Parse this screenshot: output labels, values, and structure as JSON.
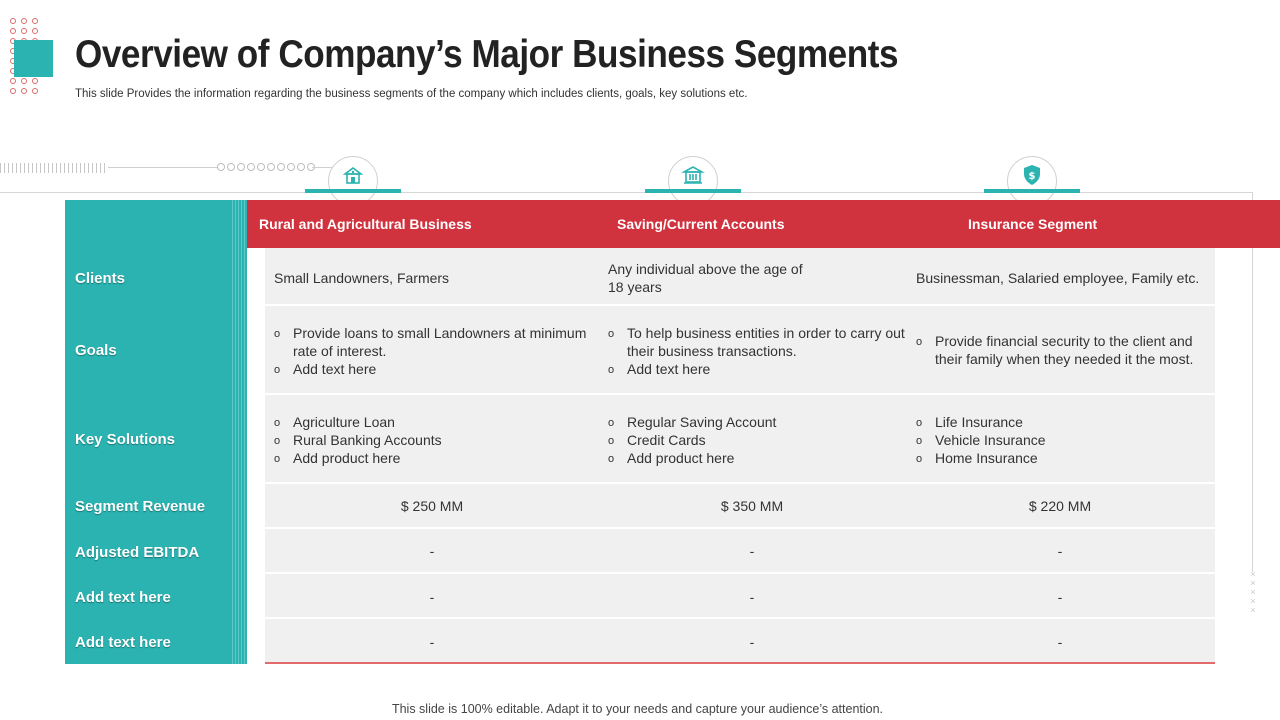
{
  "title": "Overview of Company’s Major Business Segments",
  "subtitle": "This slide Provides the information regarding the business segments of the company which includes clients, goals, key solutions etc.",
  "columns": [
    {
      "label": "Rural and Agricultural Business",
      "icon": "farm-house-icon"
    },
    {
      "label": "Saving/Current Accounts",
      "icon": "bank-building-icon"
    },
    {
      "label": "Insurance Segment",
      "icon": "dollar-shield-icon"
    }
  ],
  "rows": {
    "clients": {
      "label": "Clients",
      "cells": [
        {
          "text": "Small Landowners, Farmers"
        },
        {
          "lines": [
            "Any individual above the age of",
            "18 years"
          ]
        },
        {
          "text": "Businessman, Salaried employee, Family etc."
        }
      ]
    },
    "goals": {
      "label": "Goals",
      "cells": [
        {
          "bullets": [
            [
              "Provide loans to small Landowners at minimum",
              "rate of interest."
            ],
            [
              "Add text here"
            ]
          ]
        },
        {
          "bullets": [
            [
              "To help business entities in order to carry out",
              "their business transactions."
            ],
            [
              "Add text here"
            ]
          ]
        },
        {
          "bullets": [
            [
              "Provide financial security to the client and",
              "their family when they needed it the most."
            ]
          ]
        }
      ]
    },
    "key_solutions": {
      "label": "Key Solutions",
      "cells": [
        {
          "bullets": [
            [
              "Agriculture Loan"
            ],
            [
              "Rural Banking Accounts"
            ],
            [
              "Add product here"
            ]
          ]
        },
        {
          "bullets": [
            [
              "Regular Saving Account"
            ],
            [
              "Credit Cards"
            ],
            [
              "Add product here"
            ]
          ]
        },
        {
          "bullets": [
            [
              "Life Insurance"
            ],
            [
              "Vehicle Insurance"
            ],
            [
              "Home Insurance"
            ]
          ]
        }
      ]
    },
    "segment_revenue": {
      "label": "Segment Revenue",
      "cells": [
        "$ 250 MM",
        "$ 350 MM",
        "$ 220 MM"
      ]
    },
    "adjusted_ebitda": {
      "label": "Adjusted EBITDA",
      "cells": [
        "-",
        "-",
        "-"
      ]
    },
    "add_text_1": {
      "label": "Add text here",
      "cells": [
        "-",
        "-",
        "-"
      ]
    },
    "add_text_2": {
      "label": "Add text here",
      "cells": [
        "-",
        "-",
        "-"
      ]
    }
  },
  "footer": "This slide is 100% editable. Adapt it to your needs and capture your audience’s attention.",
  "colors": {
    "teal": "#2bb3b1",
    "red": "#d0323e",
    "grey_body": "#f0f0f0",
    "accent_line": "#e26a6a"
  }
}
